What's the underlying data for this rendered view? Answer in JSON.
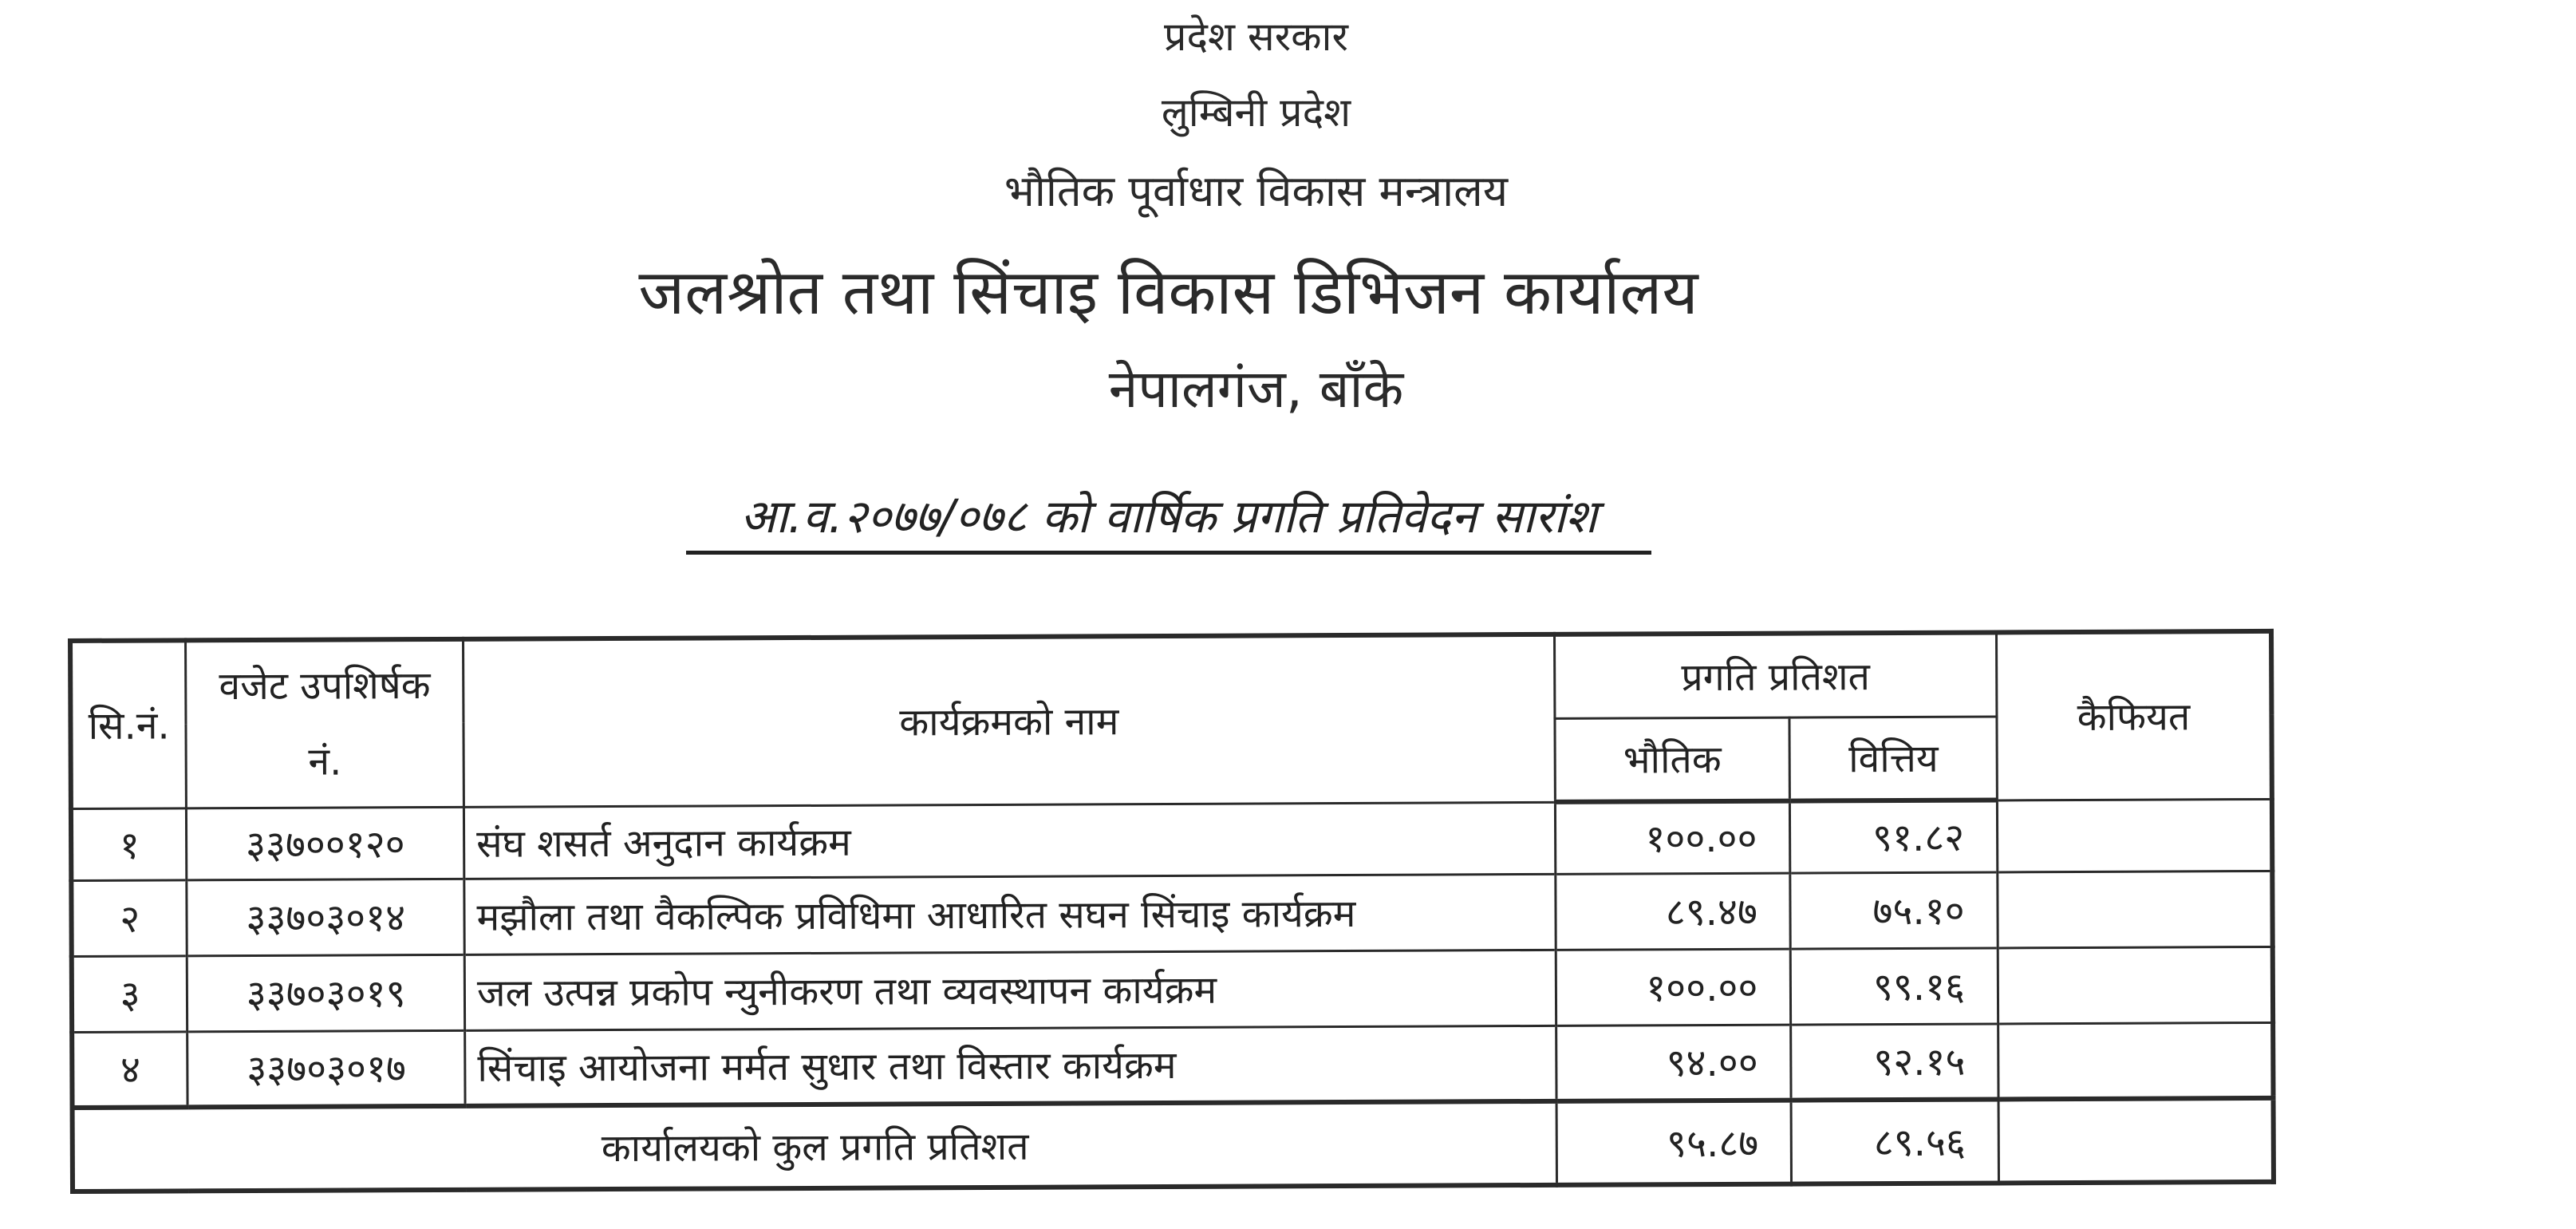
{
  "header": {
    "line1": "प्रदेश सरकार",
    "line2": "लुम्बिनी प्रदेश",
    "line3": "भौतिक पूर्वाधार विकास मन्त्रालय",
    "office": "जलश्रोत तथा सिंचाइ विकास डिभिजन कार्यालय",
    "location": "नेपालगंज, बाँके",
    "report_title": "आ.व.२०७७/०७८ को वार्षिक प्रगति प्रतिवेदन सारांश"
  },
  "table": {
    "columns": {
      "sn": "सि.नं.",
      "code": "वजेट उपशिर्षक नं.",
      "name": "कार्यक्रमको नाम",
      "progress": "प्रगति प्रतिशत",
      "physical": "भौतिक",
      "financial": "वित्तिय",
      "remarks": "कैफियत"
    },
    "rows": [
      {
        "sn": "१",
        "code": "३३७००१२०",
        "name": "संघ शसर्त अनुदान कार्यक्रम",
        "physical": "१००.००",
        "financial": "९१.८२",
        "remarks": ""
      },
      {
        "sn": "२",
        "code": "३३७०३०१४",
        "name": "मझौला तथा वैकल्पिक प्रविधिमा आधारित सघन सिंचाइ कार्यक्रम",
        "physical": "८९.४७",
        "financial": "७५.१०",
        "remarks": ""
      },
      {
        "sn": "३",
        "code": "३३७०३०१९",
        "name": "जल उत्पन्न प्रकोप न्युनीकरण तथा व्यवस्थापन कार्यक्रम",
        "physical": "१००.००",
        "financial": "९९.१६",
        "remarks": ""
      },
      {
        "sn": "४",
        "code": "३३७०३०१७",
        "name": "सिंचाइ आयोजना मर्मत सुधार तथा विस्तार कार्यक्रम",
        "physical": "९४.००",
        "financial": "९२.१५",
        "remarks": ""
      }
    ],
    "total": {
      "label": "कार्यालयको कुल प्रगति प्रतिशत",
      "physical": "९५.८७",
      "financial": "८९.५६",
      "remarks": ""
    }
  }
}
